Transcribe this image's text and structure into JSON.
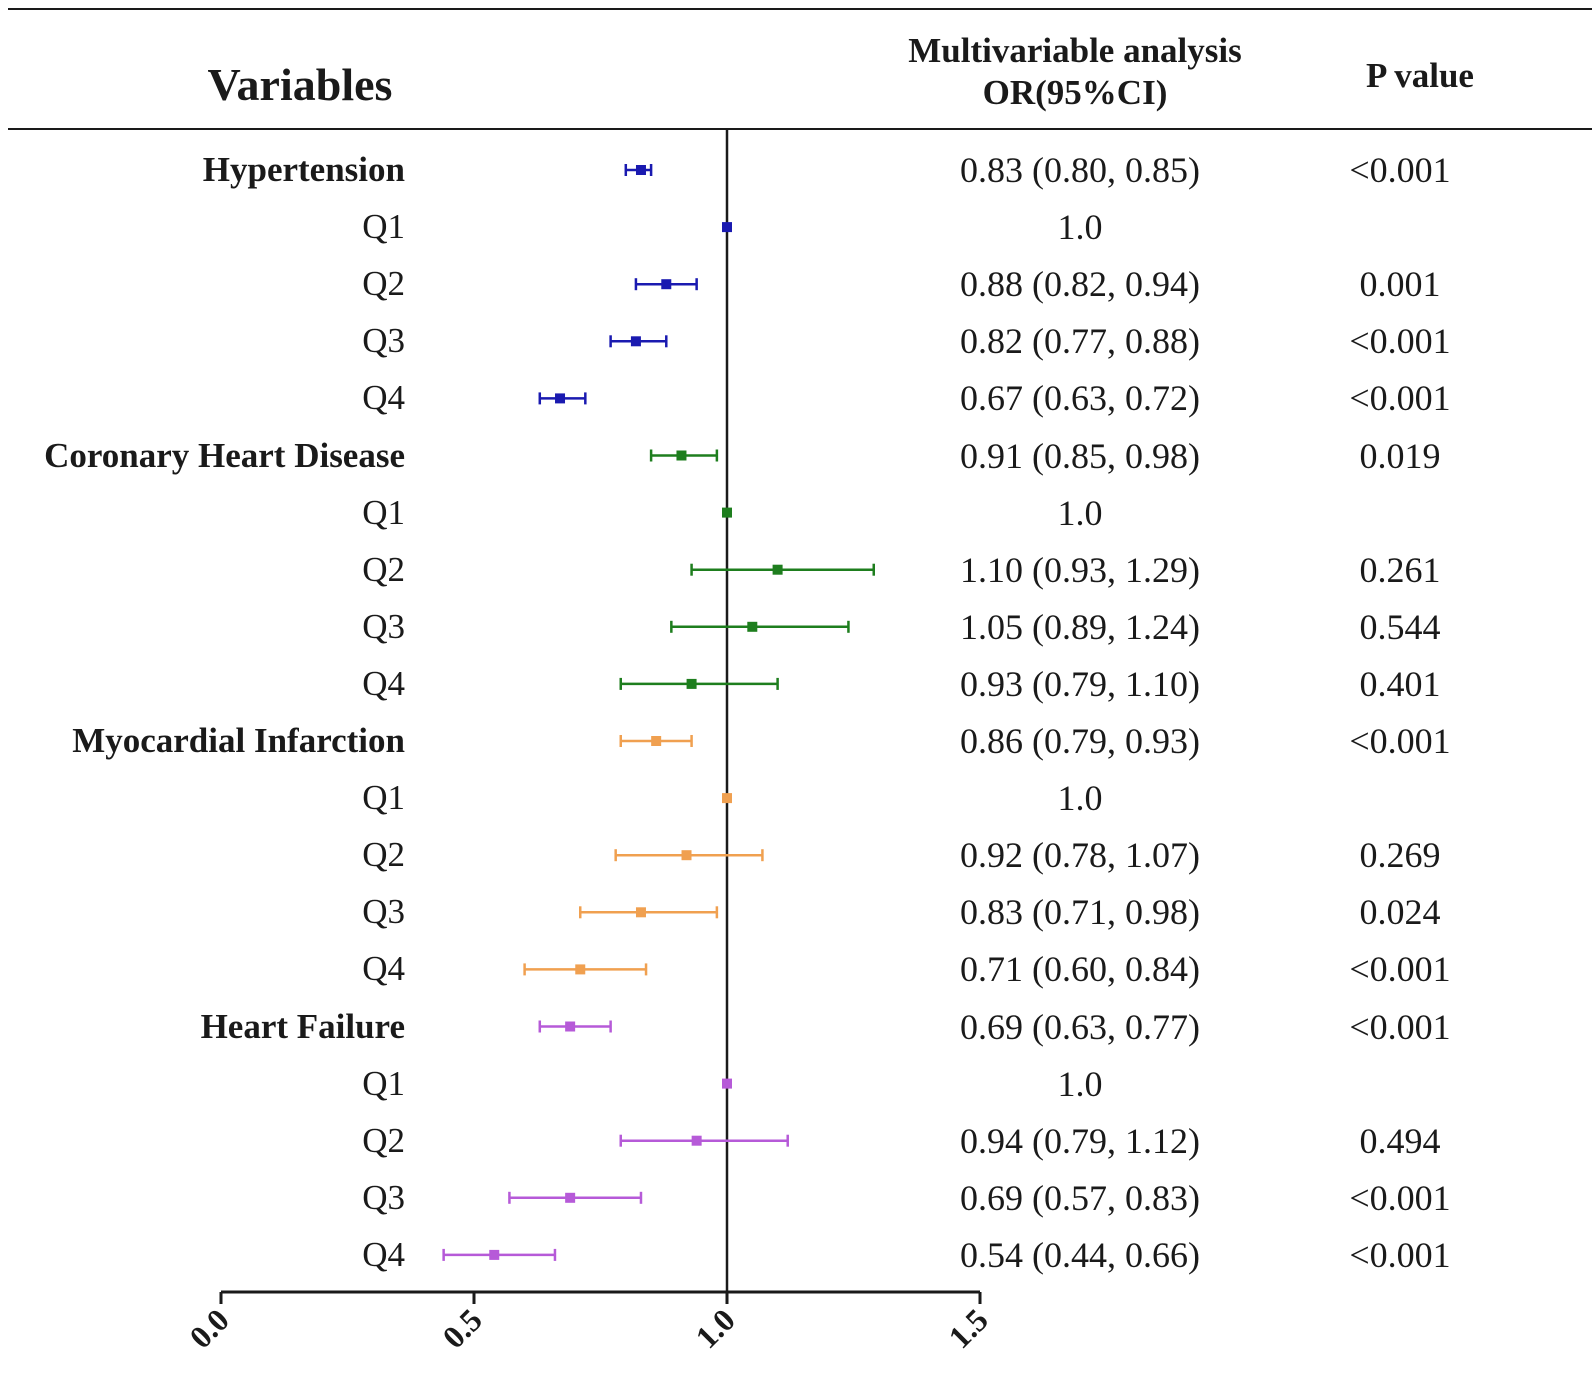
{
  "header": {
    "variables": "Variables",
    "or_line1": "Multivariable analysis",
    "or_line2": "OR(95%CI)",
    "p_value": "P value"
  },
  "colors": {
    "Hypertension": "#1a1ab0",
    "Coronary Heart Disease": "#1e7e1e",
    "Myocardial Infarction": "#f0a050",
    "Heart Failure": "#b65ad8",
    "axis": "#1a1a1a"
  },
  "chart_data": {
    "type": "forest",
    "title": "",
    "xlabel": "",
    "ylabel": "",
    "xlim": [
      0.0,
      1.5
    ],
    "reference_line": 1.0,
    "x_ticks": [
      "0.0",
      "0.5",
      "1.0",
      "1.5"
    ],
    "rows": [
      {
        "label": "Hypertension",
        "group": "Hypertension",
        "is_group": true,
        "or": 0.83,
        "lo": 0.8,
        "hi": 0.85,
        "or_text": "0.83 (0.80, 0.85)",
        "p": "<0.001"
      },
      {
        "label": "Q1",
        "group": "Hypertension",
        "is_group": false,
        "or": 1.0,
        "lo": 1.0,
        "hi": 1.0,
        "or_text": "1.0",
        "p": ""
      },
      {
        "label": "Q2",
        "group": "Hypertension",
        "is_group": false,
        "or": 0.88,
        "lo": 0.82,
        "hi": 0.94,
        "or_text": "0.88 (0.82, 0.94)",
        "p": "0.001"
      },
      {
        "label": "Q3",
        "group": "Hypertension",
        "is_group": false,
        "or": 0.82,
        "lo": 0.77,
        "hi": 0.88,
        "or_text": "0.82 (0.77, 0.88)",
        "p": "<0.001"
      },
      {
        "label": "Q4",
        "group": "Hypertension",
        "is_group": false,
        "or": 0.67,
        "lo": 0.63,
        "hi": 0.72,
        "or_text": "0.67 (0.63, 0.72)",
        "p": "<0.001"
      },
      {
        "label": "Coronary Heart Disease",
        "group": "Coronary Heart Disease",
        "is_group": true,
        "or": 0.91,
        "lo": 0.85,
        "hi": 0.98,
        "or_text": "0.91 (0.85, 0.98)",
        "p": "0.019"
      },
      {
        "label": "Q1",
        "group": "Coronary Heart Disease",
        "is_group": false,
        "or": 1.0,
        "lo": 1.0,
        "hi": 1.0,
        "or_text": "1.0",
        "p": ""
      },
      {
        "label": "Q2",
        "group": "Coronary Heart Disease",
        "is_group": false,
        "or": 1.1,
        "lo": 0.93,
        "hi": 1.29,
        "or_text": "1.10 (0.93, 1.29)",
        "p": "0.261"
      },
      {
        "label": "Q3",
        "group": "Coronary Heart Disease",
        "is_group": false,
        "or": 1.05,
        "lo": 0.89,
        "hi": 1.24,
        "or_text": "1.05 (0.89, 1.24)",
        "p": "0.544"
      },
      {
        "label": "Q4",
        "group": "Coronary Heart Disease",
        "is_group": false,
        "or": 0.93,
        "lo": 0.79,
        "hi": 1.1,
        "or_text": "0.93 (0.79, 1.10)",
        "p": "0.401"
      },
      {
        "label": "Myocardial Infarction",
        "group": "Myocardial Infarction",
        "is_group": true,
        "or": 0.86,
        "lo": 0.79,
        "hi": 0.93,
        "or_text": "0.86 (0.79, 0.93)",
        "p": "<0.001"
      },
      {
        "label": "Q1",
        "group": "Myocardial Infarction",
        "is_group": false,
        "or": 1.0,
        "lo": 1.0,
        "hi": 1.0,
        "or_text": "1.0",
        "p": ""
      },
      {
        "label": "Q2",
        "group": "Myocardial Infarction",
        "is_group": false,
        "or": 0.92,
        "lo": 0.78,
        "hi": 1.07,
        "or_text": "0.92 (0.78, 1.07)",
        "p": "0.269"
      },
      {
        "label": "Q3",
        "group": "Myocardial Infarction",
        "is_group": false,
        "or": 0.83,
        "lo": 0.71,
        "hi": 0.98,
        "or_text": "0.83 (0.71, 0.98)",
        "p": "0.024"
      },
      {
        "label": "Q4",
        "group": "Myocardial Infarction",
        "is_group": false,
        "or": 0.71,
        "lo": 0.6,
        "hi": 0.84,
        "or_text": "0.71 (0.60, 0.84)",
        "p": "<0.001"
      },
      {
        "label": "Heart Failure",
        "group": "Heart Failure",
        "is_group": true,
        "or": 0.69,
        "lo": 0.63,
        "hi": 0.77,
        "or_text": "0.69 (0.63, 0.77)",
        "p": "<0.001"
      },
      {
        "label": "Q1",
        "group": "Heart Failure",
        "is_group": false,
        "or": 1.0,
        "lo": 1.0,
        "hi": 1.0,
        "or_text": "1.0",
        "p": ""
      },
      {
        "label": "Q2",
        "group": "Heart Failure",
        "is_group": false,
        "or": 0.94,
        "lo": 0.79,
        "hi": 1.12,
        "or_text": "0.94 (0.79, 1.12)",
        "p": "0.494"
      },
      {
        "label": "Q3",
        "group": "Heart Failure",
        "is_group": false,
        "or": 0.69,
        "lo": 0.57,
        "hi": 0.83,
        "or_text": "0.69 (0.57, 0.83)",
        "p": "<0.001"
      },
      {
        "label": "Q4",
        "group": "Heart Failure",
        "is_group": false,
        "or": 0.54,
        "lo": 0.44,
        "hi": 0.66,
        "or_text": "0.54 (0.44, 0.66)",
        "p": "<0.001"
      }
    ]
  }
}
